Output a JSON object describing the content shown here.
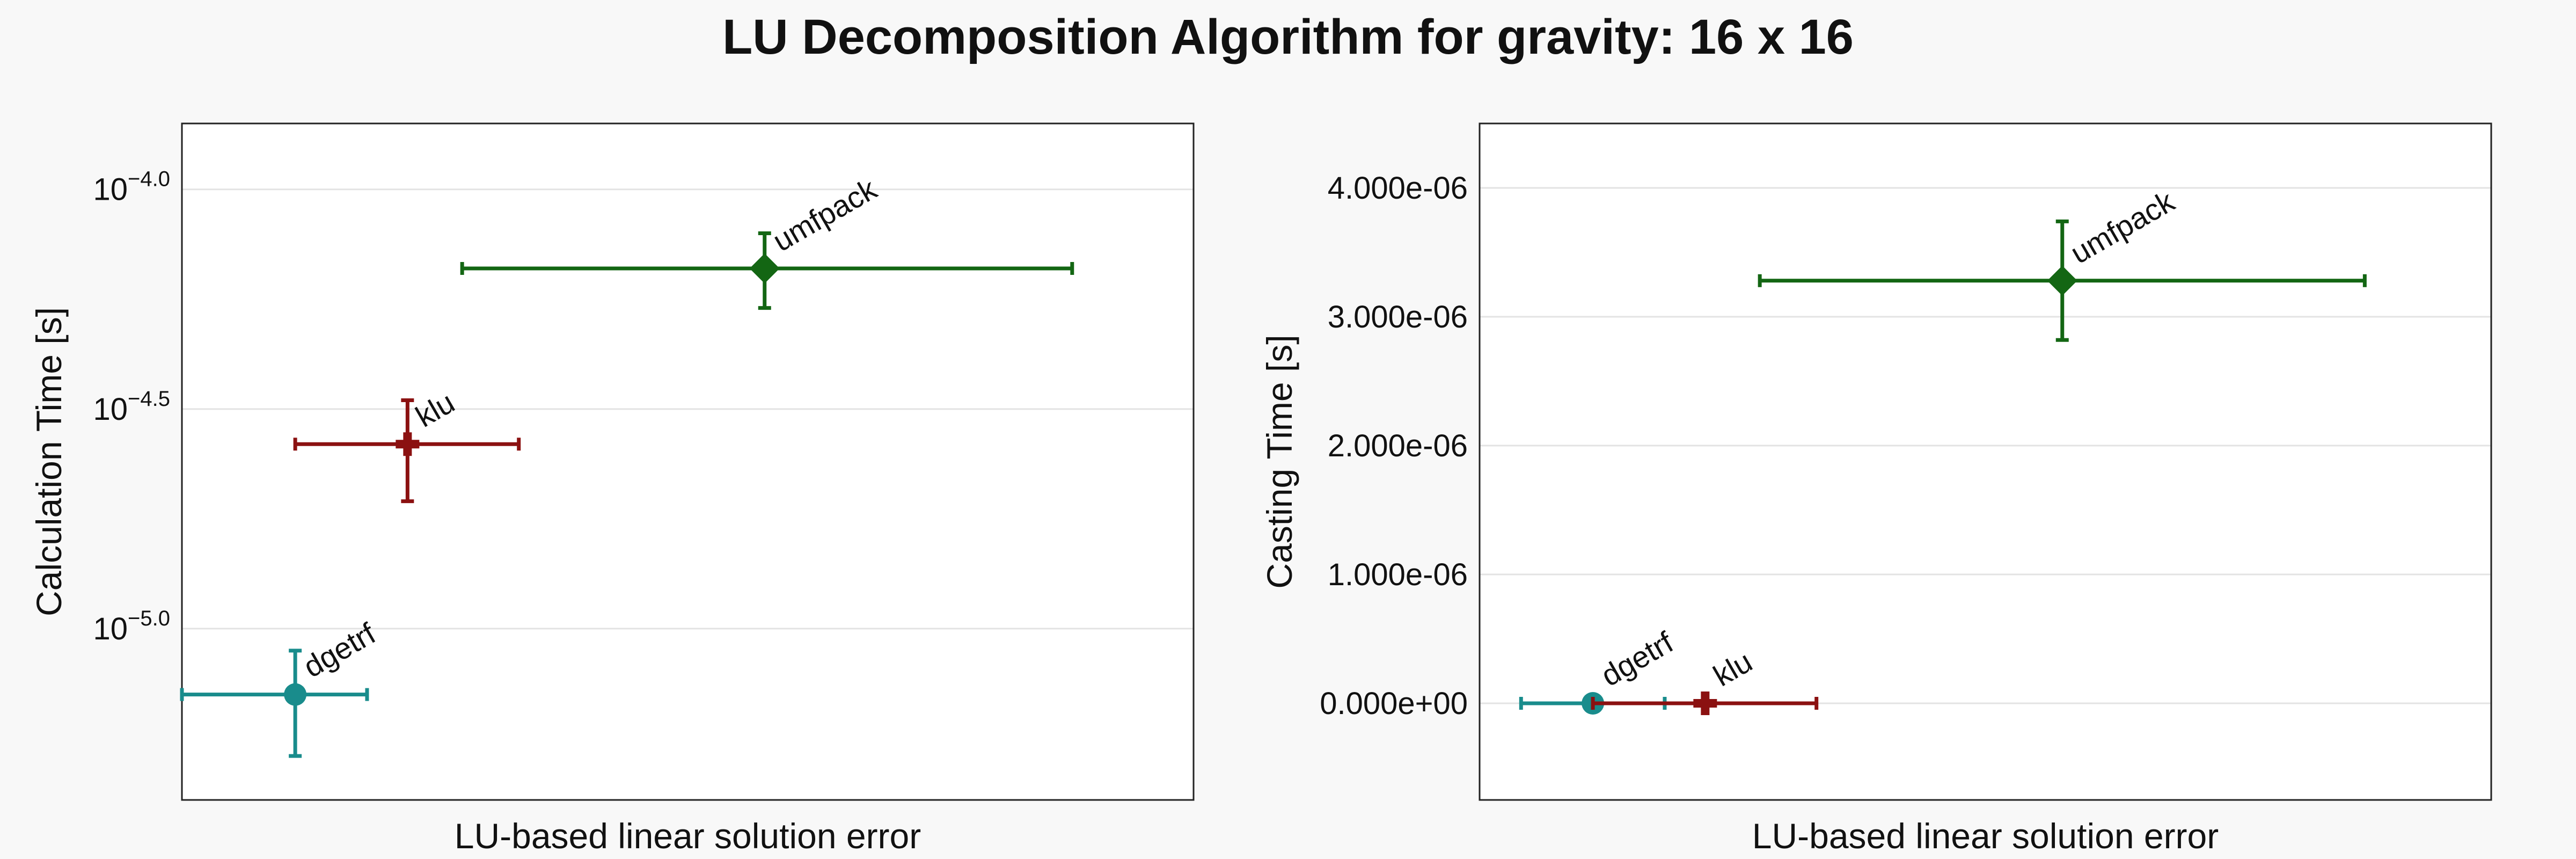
{
  "figure_title": "LU Decomposition Algorithm for gravity: 16 x 16",
  "chart_data": [
    {
      "type": "scatter",
      "xlabel": "LU-based linear solution error",
      "ylabel": "Calculation Time [s]",
      "yscale": "log10",
      "ylim": [
        -5.39,
        -3.85
      ],
      "ytick_values": [
        -5.0,
        -4.5,
        -4.0
      ],
      "ytick_labels": [
        {
          "base": "10",
          "exp": "−5.0"
        },
        {
          "base": "10",
          "exp": "−4.5"
        },
        {
          "base": "10",
          "exp": "−4.0"
        }
      ],
      "xlim": [
        0,
        100
      ],
      "x_ticks_shown": false,
      "grid": "y-major",
      "legend": "none",
      "series": [
        {
          "label": "dgetrf",
          "marker": "circle",
          "color": "#198c8c",
          "x": 11.2,
          "xerr_low": 11.2,
          "xerr_high": 7.1,
          "log10_y": -5.15,
          "log10_yerr_low": 0.14,
          "log10_yerr_high": 0.1
        },
        {
          "label": "klu",
          "marker": "cross",
          "color": "#8b1111",
          "x": 22.3,
          "xerr_low": 11.1,
          "xerr_high": 11.0,
          "log10_y": -4.58,
          "log10_yerr_low": 0.13,
          "log10_yerr_high": 0.1
        },
        {
          "label": "umfpack",
          "marker": "diamond",
          "color": "#136613",
          "x": 57.6,
          "xerr_low": 29.9,
          "xerr_high": 30.4,
          "log10_y": -4.18,
          "log10_yerr_low": 0.09,
          "log10_yerr_high": 0.08
        }
      ]
    },
    {
      "type": "scatter",
      "xlabel": "LU-based linear solution error",
      "ylabel": "Casting Time [s]",
      "yscale": "linear",
      "ylim": [
        -7.5e-07,
        4.5e-06
      ],
      "ytick_values": [
        0,
        1e-06,
        2e-06,
        3e-06,
        4e-06
      ],
      "ytick_labels": [
        "0.000e+00",
        "1.000e-06",
        "2.000e-06",
        "3.000e-06",
        "4.000e-06"
      ],
      "xlim": [
        0,
        100
      ],
      "x_ticks_shown": false,
      "grid": "y-major",
      "legend": "none",
      "series": [
        {
          "label": "dgetrf",
          "marker": "circle",
          "color": "#198c8c",
          "x": 11.2,
          "xerr_low": 7.1,
          "xerr_high": 7.1,
          "y": 0,
          "yerr_low": 0,
          "yerr_high": 0
        },
        {
          "label": "klu",
          "marker": "cross",
          "color": "#8b1111",
          "x": 22.3,
          "xerr_low": 11.1,
          "xerr_high": 11.0,
          "y": 0,
          "yerr_low": 0,
          "yerr_high": 0
        },
        {
          "label": "umfpack",
          "marker": "diamond",
          "color": "#136613",
          "x": 57.6,
          "xerr_low": 29.9,
          "xerr_high": 29.9,
          "y": 3.28e-06,
          "yerr_low": 4.6e-07,
          "yerr_high": 4.6e-07
        }
      ]
    }
  ]
}
